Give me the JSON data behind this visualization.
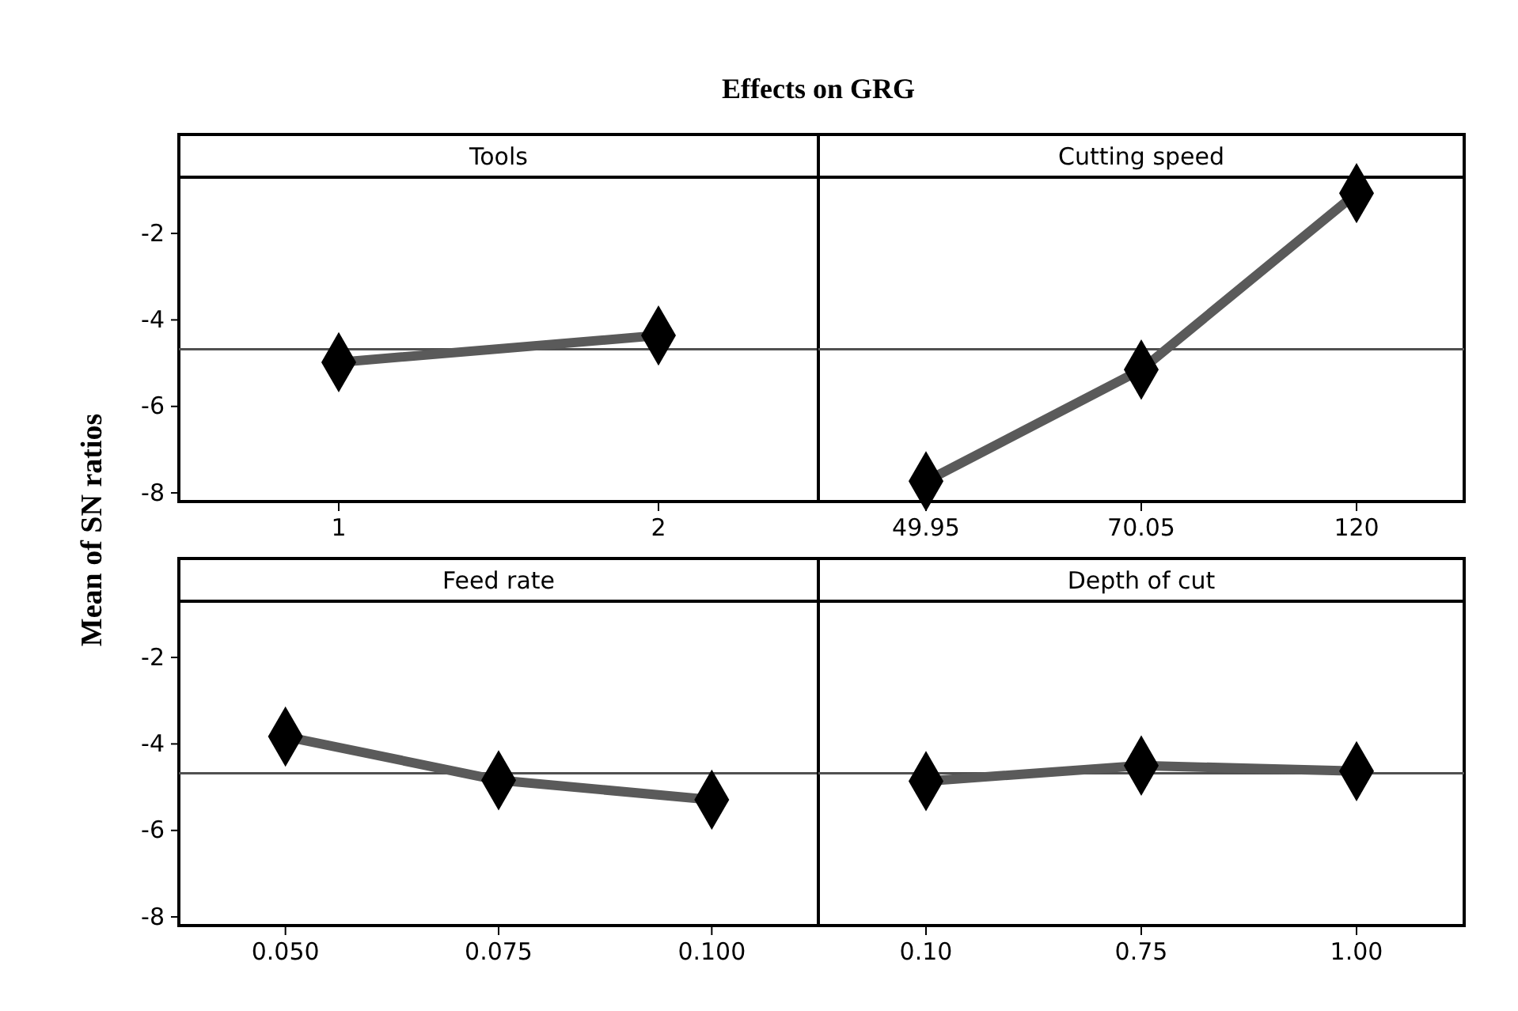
{
  "chart_data": [
    {
      "type": "line",
      "title": "Effects on GRG",
      "ylabel": "Mean of SN ratios",
      "subtitle": "Tools",
      "categories": [
        "1",
        "2"
      ],
      "series": [
        {
          "color": "#5a5a5a",
          "values": [
            -4.98,
            -4.36
          ]
        }
      ],
      "ylim": [
        -8.2,
        -0.7
      ],
      "yticks": [
        -8,
        -6,
        -4,
        -2
      ],
      "ref_lines": [
        {
          "axis": "y",
          "value": -4.68,
          "color": "#505050"
        }
      ],
      "marker": "diamond"
    },
    {
      "type": "line",
      "subtitle": "Cutting speed",
      "categories": [
        "49.95",
        "70.05",
        "120"
      ],
      "series": [
        {
          "color": "#5a5a5a",
          "values": [
            -7.73,
            -5.15,
            -1.07
          ]
        }
      ],
      "ylim": [
        -8.2,
        -0.7
      ],
      "yticks": [
        -8,
        -6,
        -4,
        -2
      ],
      "tick_labels": "x",
      "ref_lines": [
        {
          "axis": "y",
          "value": -4.68,
          "color": "#505050"
        }
      ],
      "marker": "diamond"
    },
    {
      "type": "line",
      "subtitle": "Feed rate",
      "categories": [
        "0.050",
        "0.075",
        "0.100"
      ],
      "series": [
        {
          "color": "#5a5a5a",
          "values": [
            -3.83,
            -4.84,
            -5.29
          ]
        }
      ],
      "ylim": [
        -8.2,
        -0.7
      ],
      "yticks": [
        -8,
        -6,
        -4,
        -2
      ],
      "ref_lines": [
        {
          "axis": "y",
          "value": -4.68,
          "color": "#505050"
        }
      ],
      "marker": "diamond"
    },
    {
      "type": "line",
      "subtitle": "Depth of cut",
      "categories": [
        "0.10",
        "0.75",
        "1.00"
      ],
      "series": [
        {
          "color": "#5a5a5a",
          "values": [
            -4.86,
            -4.5,
            -4.63
          ]
        }
      ],
      "ylim": [
        -8.2,
        -0.7
      ],
      "yticks": [
        -8,
        -6,
        -4,
        -2
      ],
      "tick_labels": "x",
      "ref_lines": [
        {
          "axis": "y",
          "value": -4.68,
          "color": "#505050"
        }
      ],
      "marker": "diamond"
    }
  ]
}
